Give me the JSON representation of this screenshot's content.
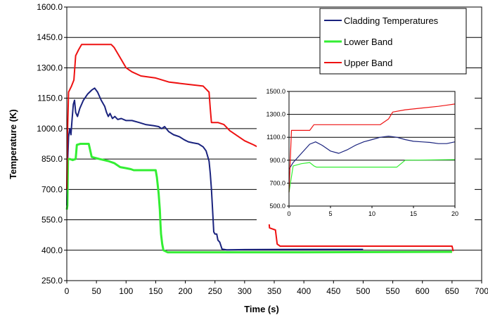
{
  "chart_data": [
    {
      "type": "line",
      "xlabel": "Time (s)",
      "ylabel": "Temperature (K)",
      "xlim": [
        0,
        700
      ],
      "ylim": [
        250,
        1600
      ],
      "xticks": [
        0,
        50,
        100,
        150,
        200,
        250,
        300,
        350,
        400,
        450,
        500,
        550,
        600,
        650,
        700
      ],
      "yticks": [
        250,
        400,
        550,
        700,
        850,
        1000,
        1150,
        1300,
        1450,
        1600
      ],
      "ytick_labels": [
        "250.0",
        "400.0",
        "550.0",
        "700.0",
        "850.0",
        "1000.0",
        "1150.0",
        "1300.0",
        "1450.0",
        "1600.0"
      ],
      "grid": "horizontal",
      "legend_position": "top-right",
      "series": [
        {
          "name": "Cladding Temperatures",
          "color": "#1a237e",
          "points": [
            [
              0,
              620
            ],
            [
              1,
              800
            ],
            [
              3,
              960
            ],
            [
              5,
              1000
            ],
            [
              7,
              970
            ],
            [
              9,
              1050
            ],
            [
              11,
              1120
            ],
            [
              13,
              1140
            ],
            [
              15,
              1080
            ],
            [
              18,
              1060
            ],
            [
              22,
              1100
            ],
            [
              28,
              1140
            ],
            [
              35,
              1170
            ],
            [
              42,
              1190
            ],
            [
              47,
              1200
            ],
            [
              52,
              1180
            ],
            [
              58,
              1140
            ],
            [
              64,
              1110
            ],
            [
              67,
              1080
            ],
            [
              70,
              1060
            ],
            [
              73,
              1075
            ],
            [
              77,
              1050
            ],
            [
              81,
              1060
            ],
            [
              86,
              1045
            ],
            [
              92,
              1050
            ],
            [
              100,
              1040
            ],
            [
              110,
              1040
            ],
            [
              122,
              1030
            ],
            [
              133,
              1020
            ],
            [
              146,
              1015
            ],
            [
              155,
              1010
            ],
            [
              160,
              1000
            ],
            [
              165,
              1010
            ],
            [
              172,
              985
            ],
            [
              180,
              970
            ],
            [
              190,
              960
            ],
            [
              198,
              945
            ],
            [
              205,
              935
            ],
            [
              213,
              930
            ],
            [
              222,
              925
            ],
            [
              230,
              910
            ],
            [
              235,
              890
            ],
            [
              238,
              860
            ],
            [
              240,
              840
            ],
            [
              242,
              780
            ],
            [
              244,
              700
            ],
            [
              246,
              600
            ],
            [
              248,
              490
            ],
            [
              250,
              480
            ],
            [
              253,
              480
            ],
            [
              255,
              450
            ],
            [
              258,
              440
            ],
            [
              262,
              405
            ],
            [
              270,
              402
            ],
            [
              300,
              403
            ],
            [
              400,
              404
            ],
            [
              500,
              404
            ]
          ]
        },
        {
          "name": "Lower Band",
          "color": "#33ee33",
          "points": [
            [
              0,
              600
            ],
            [
              1,
              620
            ],
            [
              2,
              850
            ],
            [
              5,
              850
            ],
            [
              10,
              845
            ],
            [
              15,
              850
            ],
            [
              17,
              920
            ],
            [
              23,
              925
            ],
            [
              37,
              925
            ],
            [
              42,
              860
            ],
            [
              55,
              850
            ],
            [
              70,
              840
            ],
            [
              80,
              830
            ],
            [
              90,
              810
            ],
            [
              100,
              805
            ],
            [
              108,
              800
            ],
            [
              113,
              795
            ],
            [
              150,
              795
            ],
            [
              152,
              760
            ],
            [
              155,
              680
            ],
            [
              157,
              600
            ],
            [
              158,
              530
            ],
            [
              159,
              480
            ],
            [
              161,
              430
            ],
            [
              163,
              400
            ],
            [
              170,
              390
            ],
            [
              200,
              390
            ],
            [
              400,
              390
            ],
            [
              650,
              392
            ]
          ]
        },
        {
          "name": "Upper Band",
          "color": "#ee1111",
          "points": [
            [
              0,
              700
            ],
            [
              1,
              950
            ],
            [
              3,
              1180
            ],
            [
              8,
              1210
            ],
            [
              12,
              1240
            ],
            [
              15,
              1360
            ],
            [
              20,
              1390
            ],
            [
              25,
              1415
            ],
            [
              75,
              1415
            ],
            [
              80,
              1400
            ],
            [
              90,
              1350
            ],
            [
              100,
              1300
            ],
            [
              110,
              1280
            ],
            [
              125,
              1260
            ],
            [
              150,
              1250
            ],
            [
              172,
              1230
            ],
            [
              200,
              1220
            ],
            [
              230,
              1210
            ],
            [
              240,
              1180
            ],
            [
              242,
              1100
            ],
            [
              244,
              1030
            ],
            [
              255,
              1030
            ],
            [
              265,
              1020
            ],
            [
              275,
              990
            ],
            [
              300,
              940
            ],
            [
              315,
              920
            ],
            [
              325,
              905
            ],
            [
              330,
              880
            ],
            [
              335,
              780
            ],
            [
              338,
              670
            ],
            [
              340,
              580
            ],
            [
              342,
              510
            ],
            [
              352,
              500
            ],
            [
              355,
              430
            ],
            [
              360,
              420
            ],
            [
              400,
              420
            ],
            [
              650,
              420
            ],
            [
              652,
              395
            ]
          ]
        }
      ]
    },
    {
      "type": "line",
      "inset": true,
      "xlim": [
        0,
        20
      ],
      "ylim": [
        500,
        1500
      ],
      "xticks": [
        0,
        5,
        10,
        15,
        20
      ],
      "yticks": [
        500,
        700,
        900,
        1100,
        1300,
        1500
      ],
      "ytick_labels": [
        "500.0",
        "700.0",
        "900.0",
        "1100.0",
        "1300.0",
        "1500.0"
      ],
      "grid": "horizontal",
      "series": [
        {
          "name": "Cladding Temperatures",
          "color": "#1a237e",
          "points": [
            [
              0,
              820
            ],
            [
              0.5,
              880
            ],
            [
              1.5,
              960
            ],
            [
              2.5,
              1040
            ],
            [
              3.2,
              1060
            ],
            [
              4,
              1030
            ],
            [
              5,
              980
            ],
            [
              6,
              960
            ],
            [
              7,
              990
            ],
            [
              8,
              1030
            ],
            [
              9,
              1060
            ],
            [
              10,
              1080
            ],
            [
              11,
              1100
            ],
            [
              12,
              1110
            ],
            [
              13,
              1100
            ],
            [
              14,
              1080
            ],
            [
              15,
              1065
            ],
            [
              16,
              1060
            ],
            [
              17,
              1055
            ],
            [
              18,
              1045
            ],
            [
              19,
              1045
            ],
            [
              20,
              1060
            ]
          ]
        },
        {
          "name": "Lower Band",
          "color": "#33ee33",
          "points": [
            [
              0,
              620
            ],
            [
              0.5,
              850
            ],
            [
              1.5,
              870
            ],
            [
              2.5,
              880
            ],
            [
              3,
              850
            ],
            [
              3.3,
              840
            ],
            [
              13,
              840
            ],
            [
              14,
              900
            ],
            [
              20,
              905
            ]
          ]
        },
        {
          "name": "Upper Band",
          "color": "#ee1111",
          "points": [
            [
              0,
              620
            ],
            [
              0.3,
              1160
            ],
            [
              2.5,
              1160
            ],
            [
              3,
              1210
            ],
            [
              11,
              1210
            ],
            [
              12,
              1260
            ],
            [
              12.5,
              1320
            ],
            [
              14,
              1340
            ],
            [
              16,
              1355
            ],
            [
              18,
              1370
            ],
            [
              20,
              1390
            ]
          ]
        }
      ]
    }
  ]
}
